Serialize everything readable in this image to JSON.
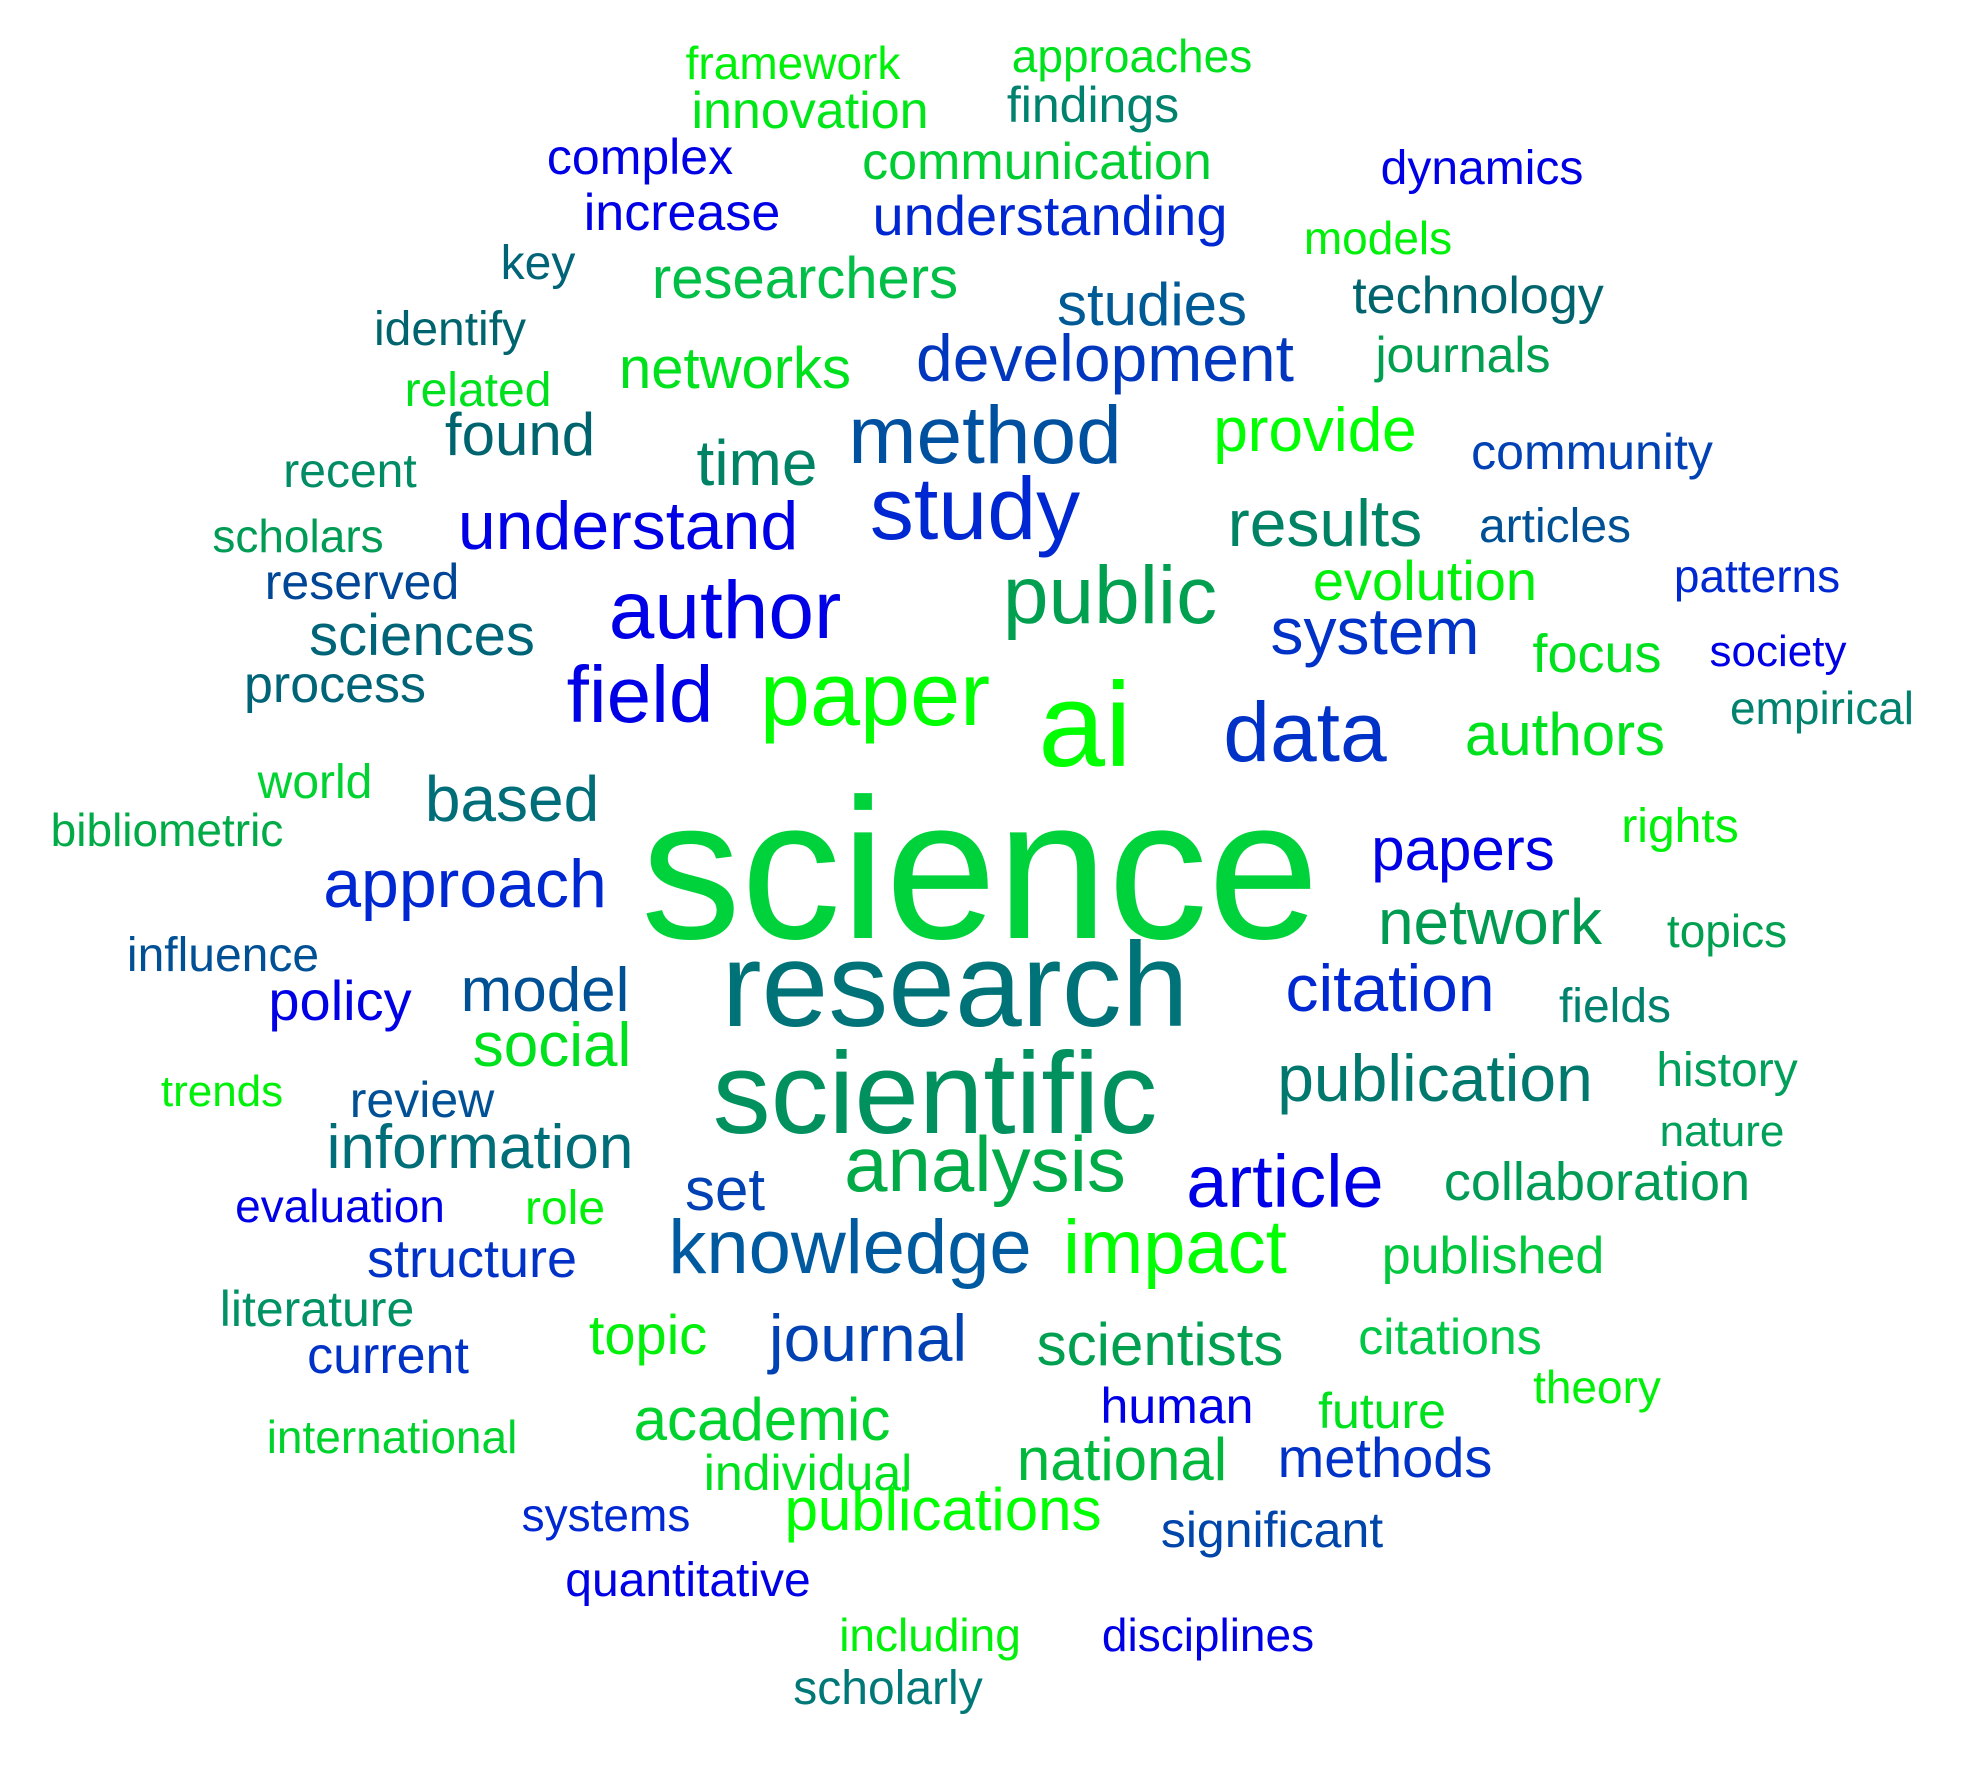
{
  "palette": {
    "green": "#00ff00",
    "mid_green": "#00c845",
    "teal_green": "#008c5a",
    "teal": "#006e78",
    "steel_blue": "#004ba0",
    "blue": "#0000e6"
  },
  "words": [
    {
      "text": "science",
      "weight": 160,
      "color": "#00d23c"
    },
    {
      "text": "research",
      "weight": 115,
      "color": "#007378"
    },
    {
      "text": "scientific",
      "weight": 105,
      "color": "#00915f"
    },
    {
      "text": "ai",
      "weight": 100,
      "color": "#00ff00"
    },
    {
      "text": "paper",
      "weight": 82,
      "color": "#00ff00"
    },
    {
      "text": "study",
      "weight": 82,
      "color": "#0028d2"
    },
    {
      "text": "author",
      "weight": 80,
      "color": "#0000e6"
    },
    {
      "text": "public",
      "weight": 78,
      "color": "#00a050"
    },
    {
      "text": "data",
      "weight": 78,
      "color": "#0032c8"
    },
    {
      "text": "method",
      "weight": 72,
      "color": "#0050a0"
    },
    {
      "text": "field",
      "weight": 70,
      "color": "#0000e6"
    },
    {
      "text": "analysis",
      "weight": 68,
      "color": "#00aa46"
    },
    {
      "text": "impact",
      "weight": 68,
      "color": "#00ff00"
    },
    {
      "text": "knowledge",
      "weight": 66,
      "color": "#005aa0"
    },
    {
      "text": "article",
      "weight": 66,
      "color": "#0000e6"
    },
    {
      "text": "understand",
      "weight": 62,
      "color": "#0000e6"
    },
    {
      "text": "system",
      "weight": 60,
      "color": "#0032c8"
    },
    {
      "text": "citation",
      "weight": 60,
      "color": "#0028d2"
    },
    {
      "text": "approach",
      "weight": 58,
      "color": "#0028d2"
    },
    {
      "text": "results",
      "weight": 58,
      "color": "#008264"
    },
    {
      "text": "publication",
      "weight": 58,
      "color": "#00786e"
    },
    {
      "text": "network",
      "weight": 58,
      "color": "#009b50"
    },
    {
      "text": "based",
      "weight": 58,
      "color": "#006e78"
    },
    {
      "text": "time",
      "weight": 58,
      "color": "#008264"
    },
    {
      "text": "provide",
      "weight": 58,
      "color": "#00ff00"
    },
    {
      "text": "development",
      "weight": 58,
      "color": "#0037be"
    },
    {
      "text": "social",
      "weight": 56,
      "color": "#00e11e"
    },
    {
      "text": "information",
      "weight": 56,
      "color": "#006e78"
    },
    {
      "text": "model",
      "weight": 56,
      "color": "#005096"
    },
    {
      "text": "journal",
      "weight": 56,
      "color": "#0041b4"
    },
    {
      "text": "authors",
      "weight": 56,
      "color": "#00e11e"
    },
    {
      "text": "scientists",
      "weight": 54,
      "color": "#00a050"
    },
    {
      "text": "academic",
      "weight": 54,
      "color": "#00d22d"
    },
    {
      "text": "national",
      "weight": 54,
      "color": "#00b93c"
    },
    {
      "text": "publications",
      "weight": 54,
      "color": "#00ff00"
    },
    {
      "text": "papers",
      "weight": 54,
      "color": "#0000e6"
    },
    {
      "text": "found",
      "weight": 54,
      "color": "#00646e"
    },
    {
      "text": "studies",
      "weight": 54,
      "color": "#005a96"
    },
    {
      "text": "set",
      "weight": 54,
      "color": "#0041b4"
    },
    {
      "text": "sciences",
      "weight": 52,
      "color": "#006478"
    },
    {
      "text": "understanding",
      "weight": 52,
      "color": "#0028d2"
    },
    {
      "text": "researchers",
      "weight": 52,
      "color": "#00be46"
    },
    {
      "text": "networks",
      "weight": 52,
      "color": "#00e11e"
    },
    {
      "text": "topic",
      "weight": 50,
      "color": "#00f00a"
    },
    {
      "text": "policy",
      "weight": 50,
      "color": "#0000e6"
    },
    {
      "text": "evolution",
      "weight": 50,
      "color": "#00f00a"
    },
    {
      "text": "focus",
      "weight": 50,
      "color": "#00e11e"
    },
    {
      "text": "collaboration",
      "weight": 50,
      "color": "#009b55"
    },
    {
      "text": "methods",
      "weight": 50,
      "color": "#0032c8"
    },
    {
      "text": "structure",
      "weight": 50,
      "color": "#0032c8"
    },
    {
      "text": "communication",
      "weight": 48,
      "color": "#00cd32"
    },
    {
      "text": "innovation",
      "weight": 48,
      "color": "#00e619"
    },
    {
      "text": "process",
      "weight": 48,
      "color": "#006478"
    },
    {
      "text": "published",
      "weight": 48,
      "color": "#00c83c"
    },
    {
      "text": "increase",
      "weight": 48,
      "color": "#0000e6"
    },
    {
      "text": "current",
      "weight": 48,
      "color": "#0032c8"
    },
    {
      "text": "technology",
      "weight": 48,
      "color": "#00646e"
    },
    {
      "text": "literature",
      "weight": 46,
      "color": "#009164"
    },
    {
      "text": "significant",
      "weight": 46,
      "color": "#0046aa"
    },
    {
      "text": "community",
      "weight": 46,
      "color": "#0041b4"
    },
    {
      "text": "review",
      "weight": 46,
      "color": "#005096"
    },
    {
      "text": "citations",
      "weight": 46,
      "color": "#00c846"
    },
    {
      "text": "findings",
      "weight": 46,
      "color": "#00826e"
    },
    {
      "text": "journals",
      "weight": 46,
      "color": "#00a050"
    },
    {
      "text": "human",
      "weight": 46,
      "color": "#0000e6"
    },
    {
      "text": "individual",
      "weight": 46,
      "color": "#00e11e"
    },
    {
      "text": "future",
      "weight": 46,
      "color": "#00e11e"
    },
    {
      "text": "reserved",
      "weight": 46,
      "color": "#004696"
    },
    {
      "text": "complex",
      "weight": 46,
      "color": "#0000e6"
    },
    {
      "text": "rights",
      "weight": 44,
      "color": "#00f00a"
    },
    {
      "text": "quantitative",
      "weight": 44,
      "color": "#0000e6"
    },
    {
      "text": "scholarly",
      "weight": 44,
      "color": "#007878"
    },
    {
      "text": "influence",
      "weight": 44,
      "color": "#005096"
    },
    {
      "text": "history",
      "weight": 44,
      "color": "#00a05a"
    },
    {
      "text": "world",
      "weight": 44,
      "color": "#00d232"
    },
    {
      "text": "role",
      "weight": 44,
      "color": "#00f00a"
    },
    {
      "text": "dynamics",
      "weight": 44,
      "color": "#0000e6"
    },
    {
      "text": "articles",
      "weight": 44,
      "color": "#005096"
    },
    {
      "text": "topics",
      "weight": 44,
      "color": "#00a050"
    },
    {
      "text": "fields",
      "weight": 44,
      "color": "#00826e"
    },
    {
      "text": "related",
      "weight": 44,
      "color": "#00e11e"
    },
    {
      "text": "empirical",
      "weight": 44,
      "color": "#00826e"
    },
    {
      "text": "evaluation",
      "weight": 44,
      "color": "#0000e6"
    },
    {
      "text": "patterns",
      "weight": 44,
      "color": "#0028d2"
    },
    {
      "text": "framework",
      "weight": 44,
      "color": "#00f00a"
    },
    {
      "text": "approaches",
      "weight": 44,
      "color": "#00e11e"
    },
    {
      "text": "models",
      "weight": 44,
      "color": "#00f00a"
    },
    {
      "text": "theory",
      "weight": 44,
      "color": "#00f00a"
    },
    {
      "text": "key",
      "weight": 44,
      "color": "#006478"
    },
    {
      "text": "identify",
      "weight": 44,
      "color": "#00646e"
    },
    {
      "text": "recent",
      "weight": 44,
      "color": "#008c64"
    },
    {
      "text": "scholars",
      "weight": 44,
      "color": "#009b55"
    },
    {
      "text": "bibliometric",
      "weight": 44,
      "color": "#00aa46"
    },
    {
      "text": "international",
      "weight": 44,
      "color": "#00d22d"
    },
    {
      "text": "systems",
      "weight": 44,
      "color": "#0028d2"
    },
    {
      "text": "including",
      "weight": 44,
      "color": "#00f00a"
    },
    {
      "text": "disciplines",
      "weight": 44,
      "color": "#0000e6"
    },
    {
      "text": "trends",
      "weight": 42,
      "color": "#00f00a"
    },
    {
      "text": "nature",
      "weight": 42,
      "color": "#00a05a"
    },
    {
      "text": "society",
      "weight": 42,
      "color": "#0000e6"
    }
  ]
}
